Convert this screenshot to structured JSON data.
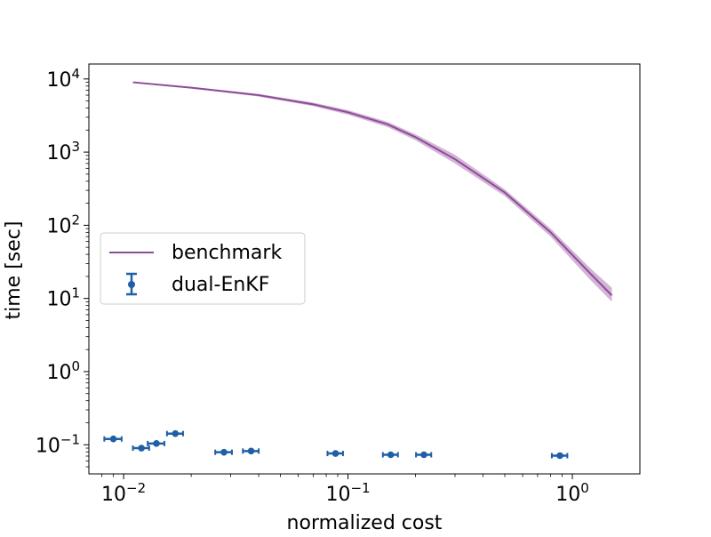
{
  "chart_data": {
    "type": "line",
    "title": "",
    "xlabel": "normalized cost",
    "ylabel": "time [sec]",
    "xscale": "log",
    "yscale": "log",
    "xlim": [
      0.007,
      2.0
    ],
    "ylim": [
      0.04,
      16000
    ],
    "grid": false,
    "legend_position": "center-left",
    "x_ticks": [
      {
        "value": 0.01,
        "base": "10",
        "exp": "−2"
      },
      {
        "value": 0.1,
        "base": "10",
        "exp": "−1"
      },
      {
        "value": 1,
        "base": "10",
        "exp": "0"
      }
    ],
    "y_ticks": [
      {
        "value": 0.1,
        "base": "10",
        "exp": "−1"
      },
      {
        "value": 1,
        "base": "10",
        "exp": "0"
      },
      {
        "value": 10,
        "base": "10",
        "exp": "1"
      },
      {
        "value": 100,
        "base": "10",
        "exp": "2"
      },
      {
        "value": 1000,
        "base": "10",
        "exp": "3"
      },
      {
        "value": 10000,
        "base": "10",
        "exp": "4"
      }
    ],
    "series": [
      {
        "name": "benchmark",
        "kind": "line_with_band",
        "color": "#8b4d96",
        "band_color": "#b077b7",
        "points": [
          {
            "x": 0.011,
            "y": 9000,
            "lo": 8850,
            "hi": 9150
          },
          {
            "x": 0.02,
            "y": 7600,
            "lo": 7400,
            "hi": 7800
          },
          {
            "x": 0.04,
            "y": 6000,
            "lo": 5750,
            "hi": 6250
          },
          {
            "x": 0.07,
            "y": 4500,
            "lo": 4250,
            "hi": 4750
          },
          {
            "x": 0.1,
            "y": 3500,
            "lo": 3250,
            "hi": 3750
          },
          {
            "x": 0.15,
            "y": 2400,
            "lo": 2200,
            "hi": 2600
          },
          {
            "x": 0.2,
            "y": 1600,
            "lo": 1450,
            "hi": 1750
          },
          {
            "x": 0.3,
            "y": 800,
            "lo": 700,
            "hi": 920
          },
          {
            "x": 0.5,
            "y": 280,
            "lo": 250,
            "hi": 310
          },
          {
            "x": 0.8,
            "y": 80,
            "lo": 70,
            "hi": 90
          },
          {
            "x": 1.2,
            "y": 22,
            "lo": 18,
            "hi": 26
          },
          {
            "x": 1.5,
            "y": 11,
            "lo": 9,
            "hi": 14
          }
        ]
      },
      {
        "name": "dual-EnKF",
        "kind": "errorbar",
        "color": "#1f5fa6",
        "points": [
          {
            "x": 0.009,
            "y": 0.12,
            "xerr": 0.0008
          },
          {
            "x": 0.012,
            "y": 0.09,
            "xerr": 0.001
          },
          {
            "x": 0.014,
            "y": 0.104,
            "xerr": 0.0012
          },
          {
            "x": 0.017,
            "y": 0.142,
            "xerr": 0.0014
          },
          {
            "x": 0.028,
            "y": 0.079,
            "xerr": 0.0024
          },
          {
            "x": 0.037,
            "y": 0.082,
            "xerr": 0.003
          },
          {
            "x": 0.088,
            "y": 0.076,
            "xerr": 0.007
          },
          {
            "x": 0.155,
            "y": 0.073,
            "xerr": 0.012
          },
          {
            "x": 0.218,
            "y": 0.073,
            "xerr": 0.017
          },
          {
            "x": 0.88,
            "y": 0.071,
            "xerr": 0.07
          }
        ]
      }
    ]
  }
}
